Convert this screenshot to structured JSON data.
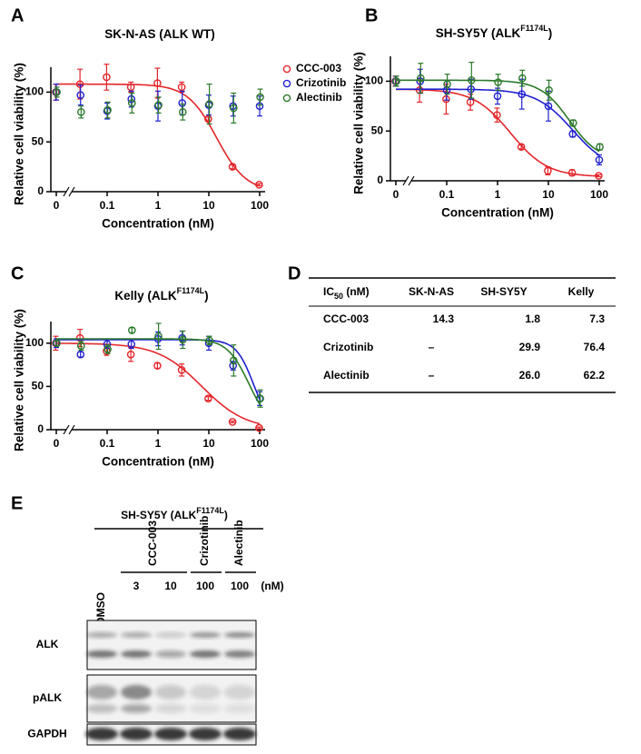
{
  "chart_data": [
    {
      "type": "scatter",
      "panel_label": "A",
      "title": [
        "SK-N-AS (ALK WT)"
      ],
      "xlabel": "Concentration (nM)",
      "ylabel": "Relative cell viability (%)",
      "xscale": "log",
      "axis_break": true,
      "legend": "right",
      "x": [
        0,
        0.03,
        0.1,
        0.3,
        1,
        3,
        10,
        30,
        100
      ],
      "xlim": [
        0.01,
        100
      ],
      "xticks": [
        0,
        0.1,
        1,
        10,
        100
      ],
      "ylim": [
        0,
        125
      ],
      "yticks": [
        0,
        50,
        100
      ],
      "series": [
        {
          "name": "CCC-003",
          "color": "#e3262b",
          "values": [
            100,
            108,
            115,
            105,
            109,
            105,
            73,
            25,
            7
          ],
          "errors": [
            8,
            15,
            13,
            5,
            15,
            5,
            2,
            2,
            1
          ],
          "fit": {
            "top": 108,
            "bottom": 0,
            "ic50": 14.3,
            "hill": 1.5
          }
        },
        {
          "name": "Crizotinib",
          "color": "#2020d0",
          "values": [
            100,
            97,
            81,
            93,
            86,
            89,
            87,
            86,
            86
          ],
          "errors": [
            8,
            10,
            8,
            8,
            15,
            12,
            10,
            10,
            10
          ]
        },
        {
          "name": "Alectinib",
          "color": "#2b7a2b",
          "values": [
            100,
            80,
            82,
            89,
            87,
            80,
            88,
            84,
            95
          ],
          "errors": [
            5,
            6,
            8,
            10,
            8,
            8,
            20,
            15,
            8
          ]
        }
      ]
    },
    {
      "type": "scatter",
      "panel_label": "B",
      "title": [
        "SH-SY5Y (ALK",
        "F1174L",
        ")"
      ],
      "xlabel": "Concentration (nM)",
      "ylabel": "Relative cell viability (%)",
      "xscale": "log",
      "axis_break": true,
      "x": [
        0,
        0.03,
        0.1,
        0.3,
        1,
        3,
        10,
        30,
        100
      ],
      "xlim": [
        0.01,
        100
      ],
      "xticks": [
        0,
        0.1,
        1,
        10,
        100
      ],
      "ylim": [
        0,
        125
      ],
      "yticks": [
        0,
        50,
        100
      ],
      "series": [
        {
          "name": "CCC-003",
          "color": "#e3262b",
          "values": [
            100,
            91,
            82,
            79,
            66,
            34,
            10,
            8,
            5
          ],
          "errors": [
            5,
            12,
            15,
            8,
            7,
            2,
            4,
            3,
            1
          ],
          "fit": {
            "top": 92,
            "bottom": 4,
            "ic50": 1.8,
            "hill": 1.2
          }
        },
        {
          "name": "Crizotinib",
          "color": "#2020d0",
          "values": [
            100,
            100,
            91,
            92,
            85,
            87,
            75,
            47,
            21
          ],
          "errors": [
            5,
            12,
            10,
            10,
            8,
            15,
            15,
            3,
            5
          ],
          "fit": {
            "top": 92,
            "bottom": 10,
            "ic50": 29.9,
            "hill": 1.2
          }
        },
        {
          "name": "Alectinib",
          "color": "#2b7a2b",
          "values": [
            100,
            103,
            97,
            101,
            99,
            103,
            91,
            58,
            34
          ],
          "errors": [
            5,
            15,
            10,
            18,
            8,
            8,
            10,
            3,
            3
          ],
          "fit": {
            "top": 101,
            "bottom": 20,
            "ic50": 26.0,
            "hill": 1.5
          }
        }
      ]
    },
    {
      "type": "scatter",
      "panel_label": "C",
      "title": [
        "Kelly (ALK",
        "F1174L",
        ")"
      ],
      "xlabel": "Concentration (nM)",
      "ylabel": "Relative cell viability (%)",
      "xscale": "log",
      "axis_break": true,
      "x": [
        0,
        0.03,
        0.1,
        0.3,
        1,
        3,
        10,
        30,
        100
      ],
      "xlim": [
        0.01,
        100
      ],
      "xticks": [
        0,
        0.1,
        1,
        10,
        100
      ],
      "ylim": [
        0,
        125
      ],
      "yticks": [
        0,
        50,
        100
      ],
      "series": [
        {
          "name": "CCC-003",
          "color": "#e3262b",
          "values": [
            100,
            106,
            91,
            87,
            74,
            69,
            36,
            9,
            2
          ],
          "errors": [
            8,
            10,
            5,
            8,
            3,
            7,
            2,
            1,
            1
          ],
          "fit": {
            "top": 100,
            "bottom": 0,
            "ic50": 7.3,
            "hill": 1
          }
        },
        {
          "name": "Crizotinib",
          "color": "#2020d0",
          "values": [
            100,
            87,
            99,
            99,
            105,
            106,
            100,
            74,
            36
          ],
          "errors": [
            5,
            3,
            5,
            5,
            8,
            8,
            8,
            5,
            8
          ],
          "fit": {
            "top": 104,
            "bottom": 0,
            "ic50": 76.4,
            "hill": 2.5
          }
        },
        {
          "name": "Alectinib",
          "color": "#2b7a2b",
          "values": [
            100,
            97,
            93,
            115,
            108,
            104,
            103,
            80,
            36
          ],
          "errors": [
            3,
            5,
            5,
            3,
            15,
            10,
            5,
            18,
            10
          ],
          "fit": {
            "top": 105,
            "bottom": 0,
            "ic50": 62.2,
            "hill": 2
          }
        }
      ]
    }
  ],
  "table": {
    "panel_label": "D",
    "header": [
      [
        "IC",
        "50",
        " (nM)"
      ],
      "SK-N-AS",
      "SH-SY5Y",
      "Kelly"
    ],
    "rows": [
      [
        "CCC-003",
        "14.3",
        "1.8",
        "7.3"
      ],
      [
        "Crizotinib",
        "–",
        "29.9",
        "76.4"
      ],
      [
        "Alectinib",
        "–",
        "26.0",
        "62.2"
      ]
    ]
  },
  "blot": {
    "panel_label": "E",
    "title": [
      "SH-SY5Y (ALK",
      "F1174L",
      ")"
    ],
    "lanes": [
      "DMSO",
      "3",
      "10",
      "100",
      "100"
    ],
    "unit": "(nM)",
    "groups": [
      "CCC-003",
      "Crizotinib",
      "Alectinib"
    ],
    "rows": [
      "ALK",
      "pALK",
      "GAPDH"
    ]
  }
}
